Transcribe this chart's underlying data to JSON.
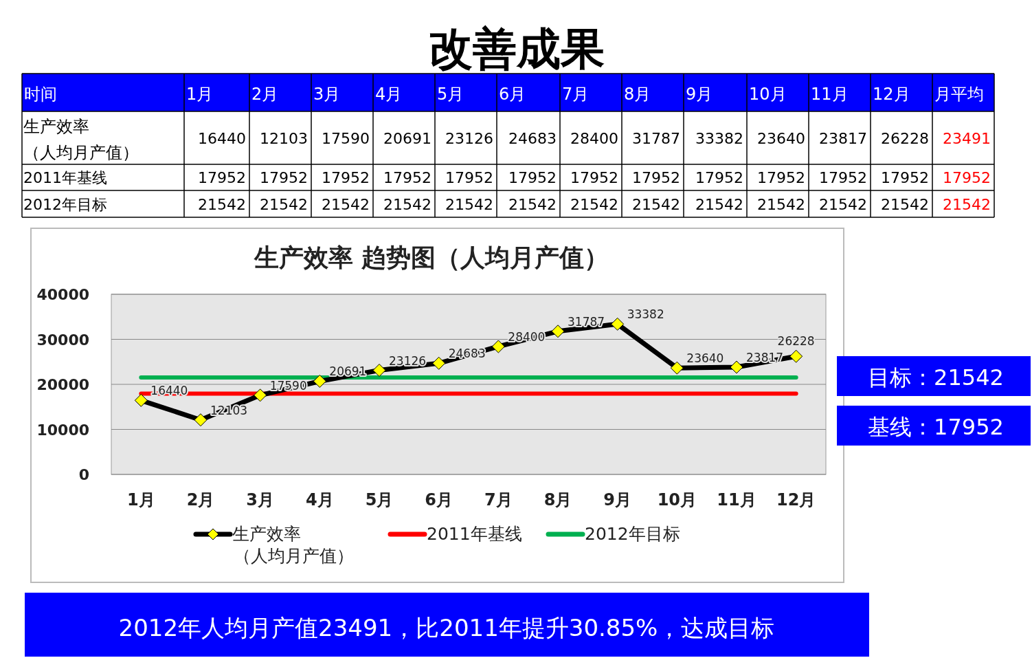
{
  "chart_data": [
    {
      "type": "heatmap",
      "title": "改善成果",
      "xlabel": "时间",
      "categories": [
        "1月",
        "2月",
        "3月",
        "4月",
        "5月",
        "6月",
        "7月",
        "8月",
        "9月",
        "10月",
        "11月",
        "12月",
        "月平均"
      ],
      "y_categories": [
        "生产效率（人均月产值）",
        "2011年基线",
        "2012年目标"
      ],
      "data_labels": true,
      "cells": [
        [
          16440,
          12103,
          17590,
          20691,
          23126,
          24683,
          28400,
          31787,
          33382,
          23640,
          23817,
          26228,
          23491
        ],
        [
          17952,
          17952,
          17952,
          17952,
          17952,
          17952,
          17952,
          17952,
          17952,
          17952,
          17952,
          17952,
          17952
        ],
        [
          21542,
          21542,
          21542,
          21542,
          21542,
          21542,
          21542,
          21542,
          21542,
          21542,
          21542,
          21542,
          21542
        ]
      ]
    },
    {
      "type": "line",
      "title": "生产效率 趋势图（人均月产值）",
      "categories": [
        "1月",
        "2月",
        "3月",
        "4月",
        "5月",
        "6月",
        "7月",
        "8月",
        "9月",
        "10月",
        "11月",
        "12月"
      ],
      "series": [
        {
          "name": "生产效率（人均月产值）",
          "color": "#000000",
          "marker": "diamond",
          "values": [
            16440,
            12103,
            17590,
            20691,
            23126,
            24683,
            28400,
            31787,
            33382,
            23640,
            23817,
            26228
          ],
          "value_labels": [
            "16440",
            "12103",
            "17590",
            "20691",
            "23126",
            "24683",
            "28400",
            "31787",
            "33382",
            "23640",
            "23817",
            "26228"
          ]
        },
        {
          "name": "2011年基线",
          "color": "#ff0000",
          "marker": "none",
          "values": [
            17952,
            17952,
            17952,
            17952,
            17952,
            17952,
            17952,
            17952,
            17952,
            17952,
            17952,
            17952
          ]
        },
        {
          "name": "2012年目标",
          "color": "#00b050",
          "marker": "none",
          "values": [
            21542,
            21542,
            21542,
            21542,
            21542,
            21542,
            21542,
            21542,
            21542,
            21542,
            21542,
            21542
          ]
        }
      ],
      "ylim": [
        0,
        40000
      ],
      "yticks": [
        0,
        10000,
        20000,
        30000,
        40000
      ],
      "grid": "y",
      "legend": "bottom",
      "annotations": [
        "目标：21542",
        "基线：17952",
        "2012年人均月产值23491，比2011年提升30.85%，达成目标"
      ]
    }
  ]
}
